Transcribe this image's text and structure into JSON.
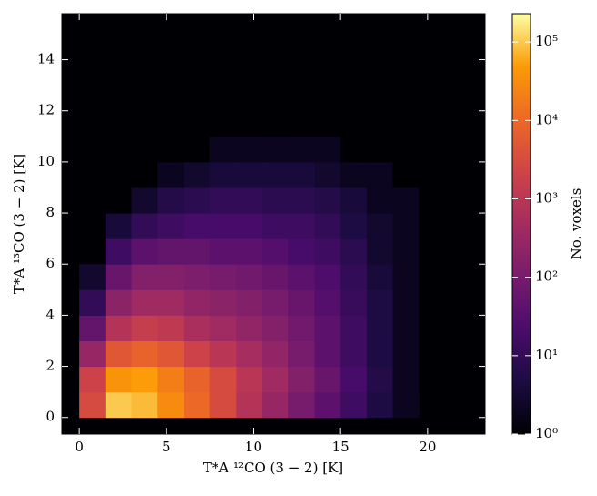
{
  "chart_data": {
    "type": "hexbin",
    "x_label": "T*A ¹²CO (3 − 2) [K]",
    "y_label": "T*A ¹³CO (3 − 2) [K]",
    "colorbar_label": "No. voxels",
    "x": [
      0.75,
      2.25,
      3.75,
      5.25,
      6.75,
      8.25,
      9.75,
      11.25,
      12.75,
      14.25,
      15.75,
      17.25,
      18.75,
      20.25,
      21.75
    ],
    "y": [
      0.5,
      1.5,
      2.5,
      3.5,
      4.5,
      5.5,
      6.5,
      7.5,
      8.5,
      9.5,
      10.5,
      11.5,
      12.5,
      13.5,
      14.5
    ],
    "z": [
      [
        3000,
        100000,
        80000,
        30000,
        10000,
        3000,
        800,
        300,
        100,
        40,
        15,
        5,
        2,
        null,
        null
      ],
      [
        2000,
        40000,
        50000,
        20000,
        8000,
        3000,
        1000,
        400,
        150,
        60,
        20,
        6,
        2,
        1,
        null
      ],
      [
        300,
        5000,
        8000,
        5000,
        2000,
        1000,
        500,
        250,
        100,
        40,
        15,
        5,
        2,
        1,
        null
      ],
      [
        50,
        800,
        1500,
        1200,
        600,
        400,
        250,
        150,
        80,
        40,
        15,
        5,
        2,
        1,
        null
      ],
      [
        10,
        200,
        400,
        400,
        250,
        200,
        150,
        100,
        60,
        30,
        12,
        5,
        2,
        1,
        null
      ],
      [
        3,
        60,
        150,
        150,
        120,
        100,
        80,
        60,
        40,
        25,
        10,
        4,
        2,
        1,
        null
      ],
      [
        null,
        15,
        40,
        50,
        50,
        40,
        40,
        30,
        20,
        15,
        8,
        3,
        2,
        1,
        null
      ],
      [
        null,
        4,
        10,
        15,
        20,
        20,
        20,
        15,
        15,
        10,
        5,
        3,
        2,
        1,
        null
      ],
      [
        null,
        1,
        3,
        6,
        8,
        10,
        10,
        8,
        8,
        6,
        4,
        2,
        2,
        1,
        1
      ],
      [
        null,
        null,
        1,
        2,
        3,
        4,
        4,
        4,
        4,
        3,
        2,
        2,
        1,
        1,
        1
      ],
      [
        null,
        null,
        null,
        1,
        1,
        2,
        2,
        2,
        2,
        2,
        1,
        1,
        1,
        1,
        null
      ],
      [
        null,
        null,
        null,
        null,
        1,
        1,
        1,
        1,
        1,
        1,
        1,
        null,
        null,
        null,
        null
      ],
      [
        null,
        null,
        null,
        null,
        null,
        1,
        1,
        1,
        null,
        null,
        null,
        null,
        null,
        null,
        null
      ],
      [
        null,
        null,
        null,
        null,
        null,
        null,
        1,
        null,
        null,
        null,
        null,
        null,
        null,
        null,
        null
      ],
      [
        null,
        null,
        null,
        null,
        null,
        null,
        1,
        null,
        null,
        null,
        null,
        null,
        null,
        null,
        null
      ]
    ],
    "cell_width": 1.5,
    "cell_height": 1,
    "xlim": [
      -1,
      23.3
    ],
    "ylim": [
      -0.65,
      15.8
    ],
    "xticks": [
      0,
      5,
      10,
      15,
      20
    ],
    "yticks": [
      0,
      2,
      4,
      6,
      8,
      10,
      12,
      14
    ],
    "clim": [
      1,
      230000
    ],
    "clog": true,
    "cticks": [
      {
        "value": 1,
        "label": "10⁰"
      },
      {
        "value": 10,
        "label": "10¹"
      },
      {
        "value": 100,
        "label": "10²"
      },
      {
        "value": 1000,
        "label": "10³"
      },
      {
        "value": 10000,
        "label": "10⁴"
      },
      {
        "value": 100000,
        "label": "10⁵"
      }
    ],
    "background": "#000004",
    "colormap": [
      "#000004",
      "#1b0c41",
      "#4a0c6b",
      "#781c6d",
      "#a52c60",
      "#cf4446",
      "#ed6925",
      "#fb9b06",
      "#fcffa4"
    ]
  }
}
